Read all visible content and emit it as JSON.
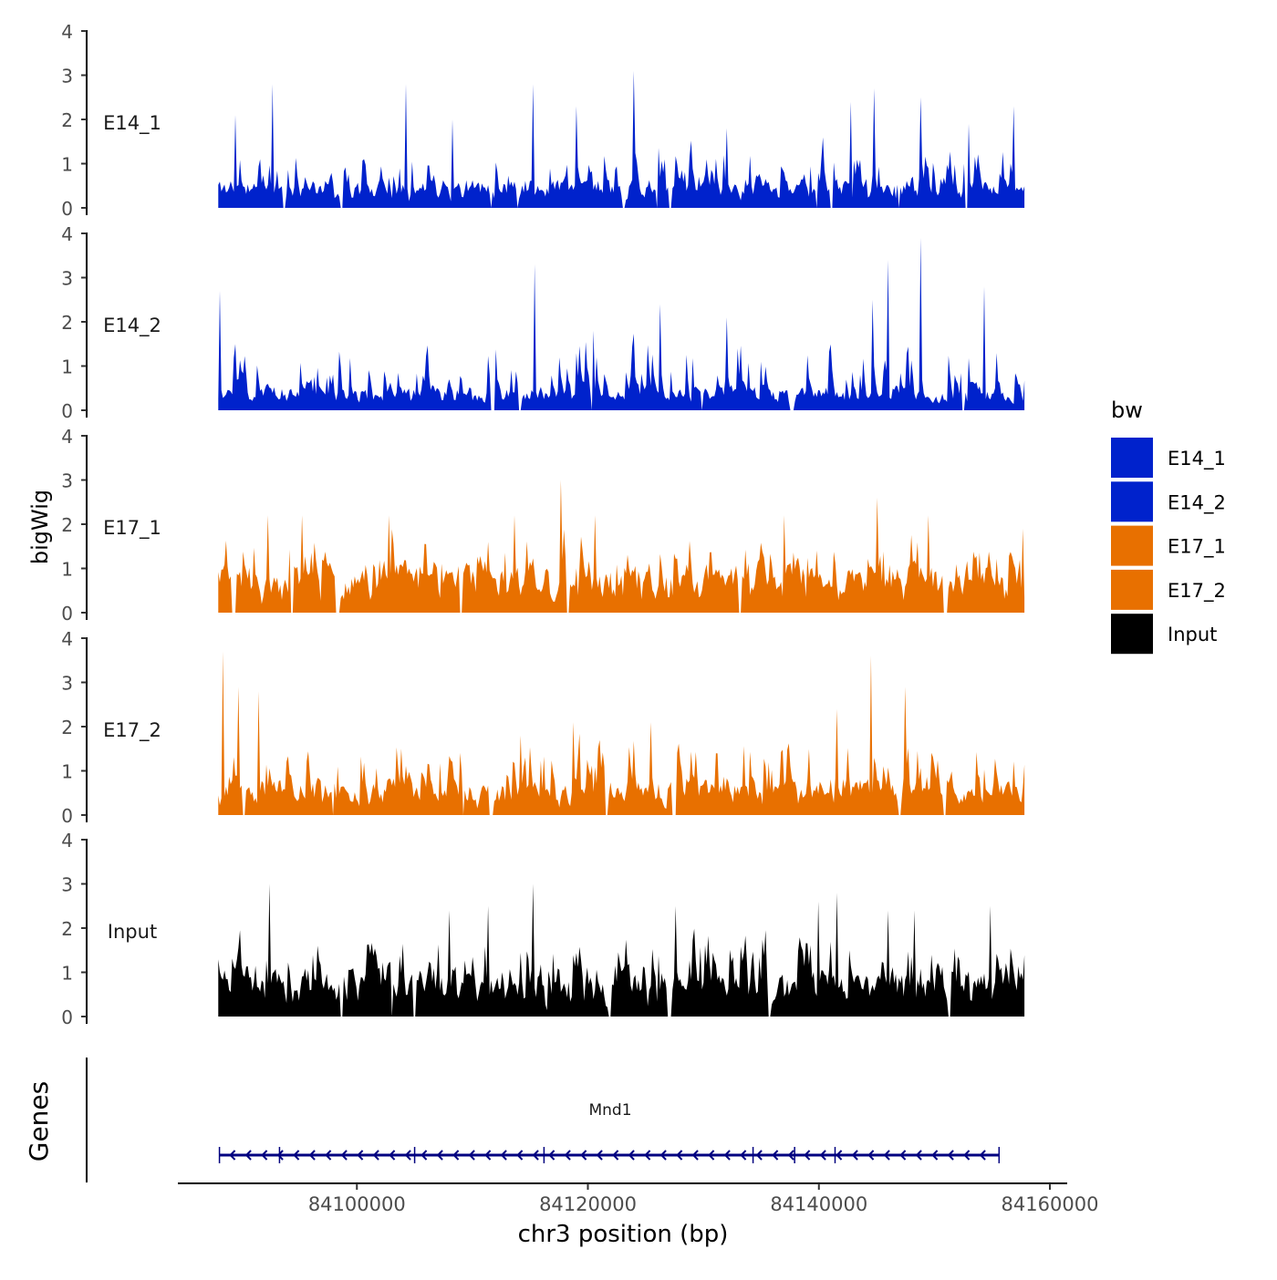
{
  "chart_data": {
    "type": "area",
    "title": "",
    "ylabel": "bigWig",
    "xlabel": "chr3 position (bp)",
    "xlim": [
      84084500,
      84161500
    ],
    "ylim": [
      0,
      4
    ],
    "y_ticks": [
      0,
      1,
      2,
      3,
      4
    ],
    "x_ticks": [
      84100000,
      84120000,
      84140000,
      84160000
    ],
    "x_tick_labels": [
      "84100000",
      "84120000",
      "84140000",
      "84160000"
    ],
    "data_range": [
      84088000,
      84157800
    ],
    "legend": {
      "title": "bw",
      "placement": "right",
      "entries": [
        {
          "label": "E14_1",
          "color": "#0022CC"
        },
        {
          "label": "E14_2",
          "color": "#0022CC"
        },
        {
          "label": "E17_1",
          "color": "#E87000"
        },
        {
          "label": "E17_2",
          "color": "#E87000"
        },
        {
          "label": "Input",
          "color": "#000000"
        }
      ]
    },
    "series": [
      {
        "name": "E14_1",
        "color": "#0022CC",
        "seed": 11,
        "base": 0.55,
        "spread": 0.8,
        "peaks": [
          [
            84089500,
            2.1
          ],
          [
            84092700,
            2.8
          ],
          [
            84104300,
            2.8
          ],
          [
            84108300,
            2.0
          ],
          [
            84115300,
            2.8
          ],
          [
            84119000,
            2.3
          ],
          [
            84124000,
            3.1
          ],
          [
            84132000,
            1.8
          ],
          [
            84142700,
            2.4
          ],
          [
            84144800,
            2.7
          ],
          [
            84148800,
            2.5
          ],
          [
            84153000,
            1.9
          ],
          [
            84156800,
            2.3
          ]
        ],
        "gaps": [
          [
            84093600,
            84093800
          ],
          [
            84098500,
            84098800
          ],
          [
            84111500,
            84111700
          ],
          [
            84113800,
            84114000
          ],
          [
            84123000,
            84123300
          ],
          [
            84125900,
            84126100
          ],
          [
            84127000,
            84127300
          ],
          [
            84139700,
            84139900
          ],
          [
            84141000,
            84141200
          ],
          [
            84146800,
            84147000
          ],
          [
            84152600,
            84152900
          ]
        ]
      },
      {
        "name": "E14_2",
        "color": "#0022CC",
        "seed": 23,
        "base": 0.45,
        "spread": 1.1,
        "peaks": [
          [
            84088100,
            2.7
          ],
          [
            84115400,
            3.3
          ],
          [
            84120500,
            1.8
          ],
          [
            84126200,
            2.4
          ],
          [
            84132000,
            2.1
          ],
          [
            84144600,
            2.5
          ],
          [
            84146000,
            3.4
          ],
          [
            84148800,
            3.9
          ],
          [
            84154300,
            2.8
          ]
        ],
        "gaps": [
          [
            84111600,
            84112000
          ],
          [
            84114000,
            84114300
          ],
          [
            84120300,
            84120600
          ],
          [
            84129800,
            84130000
          ],
          [
            84137500,
            84137800
          ],
          [
            84152300,
            84152600
          ]
        ]
      },
      {
        "name": "E17_1",
        "color": "#E87000",
        "seed": 37,
        "base": 0.9,
        "spread": 0.9,
        "peaks": [
          [
            84092300,
            2.2
          ],
          [
            84095300,
            2.2
          ],
          [
            84102700,
            2.2
          ],
          [
            84113600,
            2.2
          ],
          [
            84117700,
            3.0
          ],
          [
            84120600,
            2.2
          ],
          [
            84137000,
            2.2
          ],
          [
            84145000,
            2.6
          ],
          [
            84149500,
            2.2
          ],
          [
            84157600,
            1.9
          ]
        ],
        "gaps": [
          [
            84089200,
            84089500
          ],
          [
            84094200,
            84094500
          ],
          [
            84098200,
            84098500
          ],
          [
            84108900,
            84109100
          ],
          [
            84118100,
            84118400
          ],
          [
            84133000,
            84133300
          ],
          [
            84150800,
            84151200
          ]
        ]
      },
      {
        "name": "E17_2",
        "color": "#E87000",
        "seed": 51,
        "base": 0.7,
        "spread": 1.0,
        "peaks": [
          [
            84088400,
            3.7
          ],
          [
            84089800,
            2.9
          ],
          [
            84091500,
            2.8
          ],
          [
            84114200,
            1.8
          ],
          [
            84118700,
            2.1
          ],
          [
            84125500,
            2.1
          ],
          [
            84141500,
            2.4
          ],
          [
            84144500,
            3.6
          ],
          [
            84147500,
            2.9
          ]
        ],
        "gaps": [
          [
            84090100,
            84090300
          ],
          [
            84097800,
            84098000
          ],
          [
            84109100,
            84109300
          ],
          [
            84111400,
            84111800
          ],
          [
            84121500,
            84121800
          ],
          [
            84127300,
            84127600
          ],
          [
            84146800,
            84147100
          ],
          [
            84150700,
            84151000
          ]
        ]
      },
      {
        "name": "Input",
        "color": "#000000",
        "seed": 67,
        "base": 0.95,
        "spread": 0.9,
        "peaks": [
          [
            84092400,
            3.0
          ],
          [
            84108000,
            2.4
          ],
          [
            84111400,
            2.5
          ],
          [
            84115300,
            3.0
          ],
          [
            84127600,
            2.5
          ],
          [
            84140000,
            2.6
          ],
          [
            84141500,
            2.8
          ],
          [
            84146000,
            2.4
          ],
          [
            84148300,
            2.4
          ],
          [
            84154800,
            2.5
          ]
        ],
        "gaps": [
          [
            84098600,
            84098800
          ],
          [
            84102900,
            84103100
          ],
          [
            84104800,
            84105100
          ],
          [
            84121700,
            84122000
          ],
          [
            84126900,
            84127200
          ],
          [
            84135600,
            84135900
          ],
          [
            84151200,
            84151400
          ]
        ]
      }
    ],
    "genes_label": "Genes",
    "genes": [
      {
        "name": "Mnd1",
        "start": 84088100,
        "end": 84155600,
        "strand": "-",
        "exons": [
          84088100,
          84093300,
          84105000,
          84116200,
          84134300,
          84137900,
          84141400,
          84155600
        ]
      }
    ]
  }
}
